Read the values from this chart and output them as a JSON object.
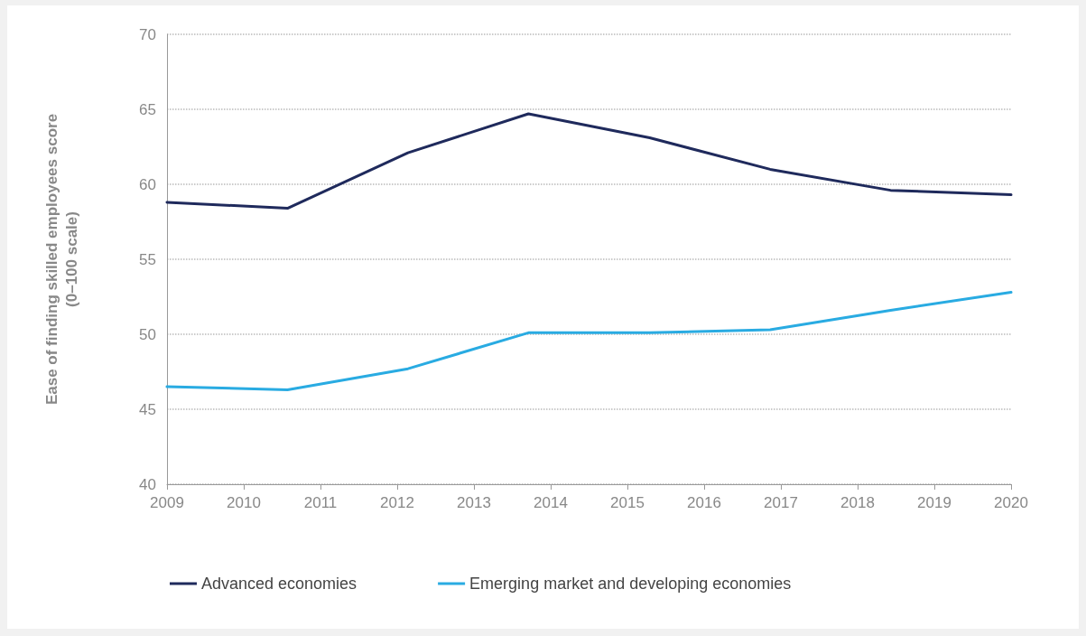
{
  "chart_data": {
    "type": "line",
    "ylabel": "Ease of finding skilled employees score\n(0–100 scale)",
    "xlim": [
      2009,
      2020
    ],
    "xticks": [
      2009,
      2010,
      2011,
      2012,
      2013,
      2014,
      2015,
      2016,
      2017,
      2018,
      2019,
      2020
    ],
    "ylim": [
      40,
      70
    ],
    "yticks": [
      40,
      45,
      50,
      55,
      60,
      65,
      70
    ],
    "x": [
      2009,
      2010.57,
      2012.14,
      2013.71,
      2015.29,
      2016.86,
      2018.43,
      2020
    ],
    "series": [
      {
        "name": "Advanced economies",
        "color": "#1f2a5c",
        "values": [
          58.8,
          58.4,
          62.1,
          64.7,
          63.1,
          61.0,
          59.6,
          59.3
        ]
      },
      {
        "name": "Emerging market and developing economies",
        "color": "#29abe2",
        "values": [
          46.5,
          46.3,
          47.7,
          50.1,
          50.1,
          50.3,
          51.6,
          52.8
        ]
      }
    ],
    "grid": "y",
    "legend": "bottom",
    "marker": "none",
    "line_style": "solid"
  }
}
